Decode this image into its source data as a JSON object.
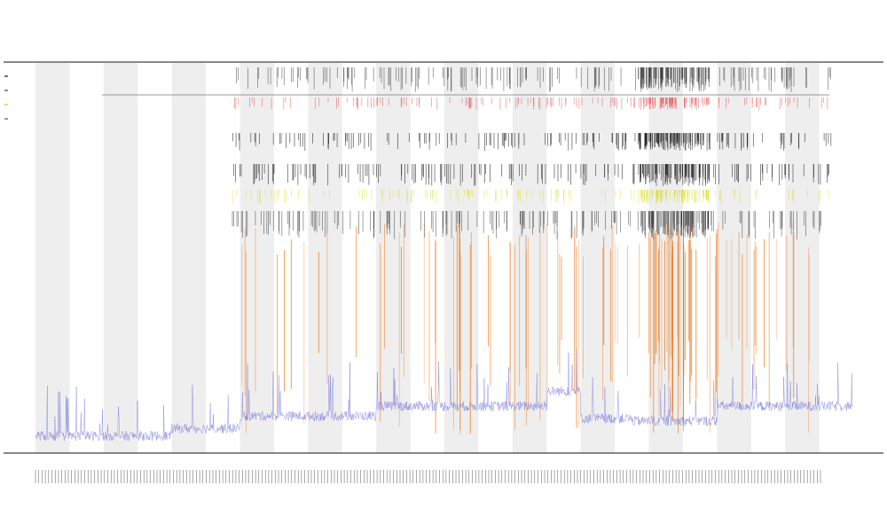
{
  "chart_data": {
    "type": "line",
    "title": "",
    "title_lines": [
      "",
      "",
      ""
    ],
    "xlabel": "",
    "ylabel": "",
    "grid": false,
    "legend_position": "top-left",
    "legend_entries": [
      {
        "label": "",
        "color": "#111111"
      },
      {
        "label": "",
        "color": "#444444"
      },
      {
        "label": "",
        "color": "#c9c900"
      },
      {
        "label": "",
        "color": "#555555"
      }
    ],
    "x_range": [
      0,
      240
    ],
    "x_tick_count": 240,
    "shaded_bands": [
      [
        0,
        10
      ],
      [
        20,
        30
      ],
      [
        40,
        50
      ],
      [
        60,
        70
      ],
      [
        80,
        90
      ],
      [
        100,
        110
      ],
      [
        120,
        130
      ],
      [
        140,
        150
      ],
      [
        160,
        170
      ],
      [
        180,
        190
      ],
      [
        200,
        210
      ],
      [
        220,
        230
      ]
    ],
    "tracks": [
      "black-events",
      "red-events",
      "black-events-2",
      "black-events-3",
      "yellow-events",
      "black-dense-events",
      "orange-spikes"
    ],
    "series": [
      {
        "name": "",
        "color": "#6f6fd8",
        "y_range": [
          0,
          100
        ],
        "y_approx_segments": [
          [
            0,
            10,
            6
          ],
          [
            10,
            40,
            6
          ],
          [
            40,
            60,
            12
          ],
          [
            60,
            100,
            22
          ],
          [
            100,
            150,
            30
          ],
          [
            150,
            160,
            42
          ],
          [
            160,
            175,
            20
          ],
          [
            175,
            200,
            18
          ],
          [
            200,
            240,
            30
          ]
        ]
      }
    ],
    "colors": {
      "axis": "#111111",
      "band": "#eeeeee",
      "series": "#6f6fd8",
      "spike": "#ee6a00",
      "event_red": "#e04040",
      "event_yellow": "#d8d800",
      "event_black": "#111111"
    }
  }
}
